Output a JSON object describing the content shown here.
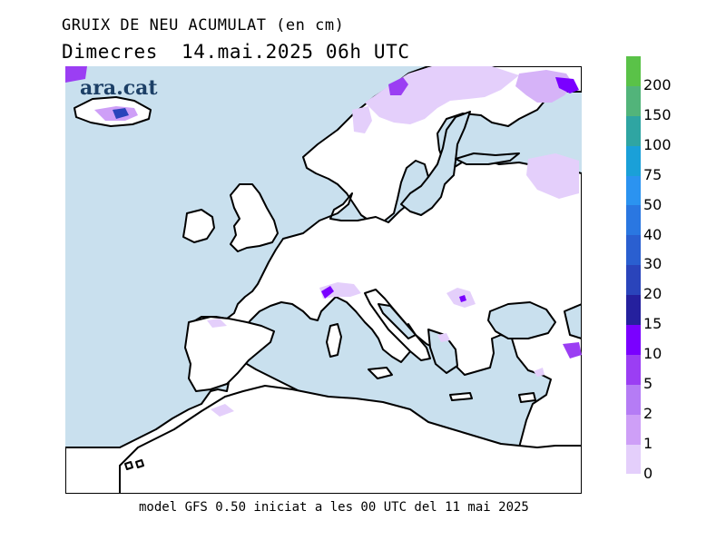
{
  "title": "GRUIX DE NEU ACUMULAT (en cm)",
  "subtitle": {
    "day": "Dimecres",
    "datetime": "14.mai.2025 06h UTC"
  },
  "logo_text": "ara.cat",
  "footer": "model GFS 0.50 iniciat a les 00 UTC del 11 mai 2025",
  "colors": {
    "sea": "#c9e0ee",
    "land": "#ffffff",
    "coast": "#000000"
  },
  "legend": {
    "items": [
      {
        "label": "200",
        "color": "#5ac248"
      },
      {
        "label": "150",
        "color": "#52b47a"
      },
      {
        "label": "100",
        "color": "#2fa5a2"
      },
      {
        "label": "75",
        "color": "#1aa0d8"
      },
      {
        "label": "50",
        "color": "#2b93f0"
      },
      {
        "label": "40",
        "color": "#2a77e1"
      },
      {
        "label": "30",
        "color": "#2a5fd0"
      },
      {
        "label": "20",
        "color": "#2a44bb"
      },
      {
        "label": "15",
        "color": "#25209e"
      },
      {
        "label": "10",
        "color": "#7a00ff"
      },
      {
        "label": "5",
        "color": "#9b3ef3"
      },
      {
        "label": "2",
        "color": "#b57cf5"
      },
      {
        "label": "1",
        "color": "#ce9ff7"
      },
      {
        "label": "0",
        "color": "#e4cffb"
      }
    ]
  }
}
